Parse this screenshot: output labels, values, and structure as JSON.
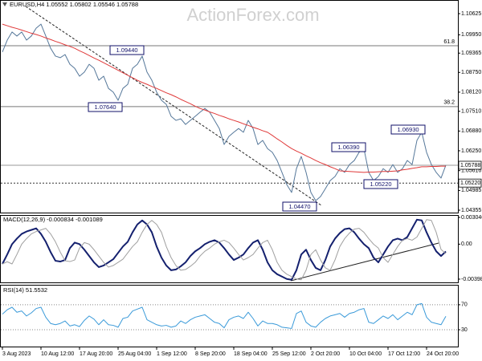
{
  "chart_data": [
    {
      "type": "line",
      "title": "EURUSD,H4 1.05552 1.05802 1.05546 1.05788",
      "watermark": "ActionForex.com",
      "categories": [
        "3 Aug 2023",
        null,
        null,
        null,
        null,
        null,
        null,
        null,
        "10 Aug 12:00",
        null,
        null,
        null,
        null,
        null,
        null,
        null,
        "17 Aug 20:00",
        null,
        null,
        null,
        null,
        null,
        null,
        null,
        "25 Aug 04:00",
        null,
        null,
        null,
        null,
        null,
        null,
        null,
        "1 Sep 12:00",
        null,
        null,
        null,
        null,
        null,
        null,
        null,
        "8 Sep 20:00",
        null,
        null,
        null,
        null,
        null,
        null,
        null,
        "18 Sep 04:00",
        null,
        null,
        null,
        null,
        null,
        null,
        null,
        "25 Sep 12:00",
        null,
        null,
        null,
        null,
        null,
        null,
        null,
        "2 Oct 20:00",
        null,
        null,
        null,
        null,
        null,
        null,
        null,
        "10 Oct 04:00",
        null,
        null,
        null,
        null,
        null,
        null,
        null,
        "17 Oct 12:00",
        null,
        null,
        null,
        null,
        null,
        null,
        null,
        "24 Oct 20:00",
        null,
        null,
        null,
        null
      ],
      "series": [
        {
          "color": "#56789a",
          "values": [
            1.094,
            1.0978,
            1.1004,
            1.0991,
            1.1004,
            1.0978,
            1.0991,
            1.1016,
            1.1029,
            1.0991,
            1.0952,
            1.0927,
            1.0922,
            1.0932,
            1.0901,
            1.0888,
            1.0863,
            1.0876,
            1.0901,
            1.0888,
            1.085,
            1.0863,
            1.0824,
            1.0812,
            1.0786,
            1.0824,
            1.0837,
            1.0888,
            1.0901,
            1.0927,
            1.0876,
            1.085,
            1.0812,
            1.0786,
            1.0773,
            1.0735,
            1.0722,
            1.0727,
            1.0709,
            1.0722,
            1.0735,
            1.0748,
            1.076,
            1.0748,
            1.0722,
            1.0696,
            1.0645,
            1.0671,
            1.0684,
            1.0696,
            1.0684,
            1.0722,
            1.0696,
            1.0645,
            1.0658,
            1.0632,
            1.062,
            1.0594,
            1.0556,
            1.0517,
            1.0492,
            1.0568,
            1.0607,
            1.0556,
            1.0492,
            1.0466,
            1.0479,
            1.0504,
            1.053,
            1.0543,
            1.0568,
            1.0556,
            1.0581,
            1.0594,
            1.062,
            1.0632,
            1.0556,
            1.053,
            1.0543,
            1.0568,
            1.0556,
            1.0581,
            1.0556,
            1.0568,
            1.0594,
            1.0581,
            1.0658,
            1.0684,
            1.062,
            1.0581,
            1.0556,
            1.0538,
            1.0579
          ]
        },
        {
          "color": "#e03a3a",
          "values": [
            1.1029,
            1.1024,
            1.1019,
            1.1015,
            1.101,
            1.1005,
            1.1,
            1.0996,
            1.0991,
            1.0985,
            1.098,
            1.0974,
            1.0969,
            1.0963,
            1.0958,
            1.0952,
            1.0944,
            1.0937,
            1.0929,
            1.0921,
            1.0914,
            1.0906,
            1.0898,
            1.089,
            1.0882,
            1.0874,
            1.0866,
            1.0858,
            1.085,
            1.0843,
            1.0837,
            1.083,
            1.0824,
            1.0817,
            1.081,
            1.0804,
            1.0797,
            1.0789,
            1.0782,
            1.0775,
            1.0767,
            1.076,
            1.0755,
            1.0749,
            1.0744,
            1.0738,
            1.0733,
            1.0727,
            1.0722,
            1.0717,
            1.0711,
            1.0706,
            1.07,
            1.0695,
            1.0689,
            1.0684,
            1.0674,
            1.0663,
            1.0653,
            1.0642,
            1.0632,
            1.0624,
            1.0617,
            1.0609,
            1.0602,
            1.0594,
            1.0587,
            1.0581,
            1.0574,
            1.0568,
            1.0561,
            1.056,
            1.0559,
            1.0558,
            1.0557,
            1.0556,
            1.0557,
            1.0557,
            1.0558,
            1.0559,
            1.0559,
            1.056,
            1.0561,
            1.0564,
            1.0566,
            1.0569,
            1.0571,
            1.0574,
            1.0574,
            1.0575,
            1.0575,
            1.0576,
            1.0576
          ]
        }
      ],
      "ylim": [
        1.04278,
        1.1106
      ],
      "yticks": [
        1.10625,
        {
          "value": 1.0995,
          "label": "1.09950"
        },
        1.09365,
        {
          "value": 1.0875,
          "label": "1.08750"
        },
        {
          "value": 1.0812,
          "label": "1.08120"
        },
        {
          "value": 1.0751,
          "label": "1.07510"
        },
        {
          "value": 1.0688,
          "label": "1.06880"
        },
        {
          "value": 1.0625,
          "label": "1.06250"
        },
        1.05616,
        1.04985,
        1.04355
      ],
      "price_lines": [
        1.05788,
        {
          "value": 1.0522,
          "label": "1.05220"
        }
      ],
      "levels": [
        {
          "label": "61.8",
          "value": 1.096
        },
        {
          "label": "38.2",
          "value": 1.0766
        }
      ],
      "annotations": [
        "1.09440",
        "1.07640",
        "1.06390",
        "1.06930",
        "1.05220",
        "1.04470"
      ],
      "grid": false
    },
    {
      "type": "line",
      "title": "MACD(12,26,9) -0.000834 -0.001089",
      "series": [
        {
          "color": "#14206e",
          "width": 2,
          "values": [
            -0.00225,
            -0.00117,
            0,
            0.00063,
            0.00117,
            0.00144,
            0.00162,
            0.0018,
            0.00117,
            0.00027,
            -0.0009,
            -0.00189,
            -0.00198,
            -0.0018,
            -0.00045,
            0.00018,
            0,
            -0.00063,
            -0.00135,
            -0.00207,
            -0.00261,
            -0.00243,
            -0.00207,
            -0.00171,
            -0.00099,
            -0.00027,
            0.00027,
            0.00135,
            0.00225,
            0.0027,
            0.00225,
            0.00135,
            -0.00027,
            -0.00153,
            -0.00243,
            -0.00297,
            -0.00288,
            -0.00252,
            -0.00207,
            -0.00135,
            -0.00081,
            -0.00045,
            0,
            0.00027,
            0.00045,
            0.00018,
            -0.00045,
            -0.00117,
            -0.0018,
            -0.00153,
            -0.00117,
            -0.00045,
            0.00018,
            0.00045,
            -0.00063,
            -0.00207,
            -0.00297,
            -0.00342,
            -0.00369,
            -0.00396,
            -0.00405,
            -0.00297,
            -0.00117,
            -0.00063,
            -0.0018,
            -0.0027,
            -0.00297,
            -0.0018,
            -0.00027,
            0.00063,
            0.00126,
            0.00171,
            0.0018,
            0.00135,
            0.00063,
            0,
            -0.00045,
            -0.00153,
            -0.00207,
            -0.00117,
            -0.00027,
            0.00045,
            0.00063,
            0.00045,
            0.00081,
            0.0018,
            0.00279,
            0.0027,
            0.00135,
            0.00018,
            -0.00081,
            -0.00135,
            -0.000834
          ]
        },
        {
          "color": "#a0a0a0",
          "width": 1,
          "values": [
            -0.00225,
            -0.002,
            -0.00225,
            -0.00117,
            0,
            0.00063,
            0.00117,
            0.00144,
            0.00162,
            0.0018,
            0.00117,
            0.00027,
            -0.0009,
            -0.00189,
            -0.00198,
            -0.0018,
            -0.00045,
            0.00018,
            0,
            -0.00063,
            -0.00135,
            -0.00207,
            -0.00261,
            -0.00243,
            -0.00207,
            -0.00171,
            -0.00099,
            -0.00027,
            0.00027,
            0.00135,
            0.00225,
            0.0027,
            0.00225,
            0.00135,
            -0.00027,
            -0.00153,
            -0.00243,
            -0.00297,
            -0.00288,
            -0.00252,
            -0.00207,
            -0.00135,
            -0.00081,
            -0.00045,
            0,
            0.00027,
            0.00045,
            0.00018,
            -0.00045,
            -0.00117,
            -0.0018,
            -0.00153,
            -0.00117,
            -0.00045,
            0.00018,
            0.00045,
            -0.00063,
            -0.00207,
            -0.00297,
            -0.00342,
            -0.00369,
            -0.00396,
            -0.00405,
            -0.00297,
            -0.00117,
            -0.00063,
            -0.0018,
            -0.0027,
            -0.00297,
            -0.0018,
            -0.00027,
            0.00063,
            0.00126,
            0.00171,
            0.0018,
            0.00135,
            0.00063,
            0,
            -0.00045,
            -0.00153,
            -0.00207,
            -0.00117,
            -0.00027,
            0.00045,
            0.00063,
            0.00045,
            0.00081,
            0.0018,
            0.00279,
            0.0027,
            0.00135,
            -0.0006,
            -0.001089
          ]
        }
      ],
      "ylim": [
        -0.00435,
        0.00332
      ],
      "yticks": [
        0.003046,
        {
          "value": 0,
          "label": "0.00"
        },
        -0.003981
      ],
      "grid": false
    },
    {
      "type": "line",
      "title": "RSI(14) 51.5532",
      "series": [
        {
          "color": "#3a9ad9",
          "width": 1,
          "values": [
            55,
            62,
            66,
            58,
            60,
            52,
            57,
            64,
            66,
            50,
            40,
            38,
            40,
            44,
            36,
            38,
            35,
            45,
            52,
            47,
            38,
            46,
            38,
            37,
            34,
            48,
            50,
            60,
            63,
            66,
            46,
            42,
            38,
            36,
            37,
            34,
            36,
            44,
            40,
            46,
            50,
            52,
            54,
            48,
            42,
            40,
            33,
            46,
            50,
            52,
            48,
            58,
            48,
            36,
            44,
            40,
            40,
            38,
            34,
            33,
            32,
            56,
            60,
            42,
            36,
            34,
            42,
            48,
            52,
            54,
            56,
            50,
            56,
            58,
            62,
            64,
            42,
            40,
            46,
            52,
            48,
            54,
            46,
            52,
            58,
            54,
            70,
            72,
            50,
            42,
            40,
            38,
            51.5532
          ]
        }
      ],
      "ylim": [
        3,
        102
      ],
      "yticks": [
        70,
        30
      ],
      "grid": true
    }
  ]
}
